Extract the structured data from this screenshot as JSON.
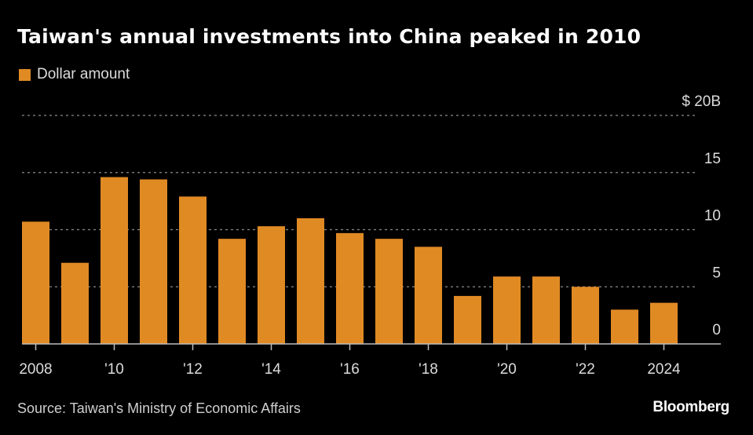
{
  "chart_data": {
    "type": "bar",
    "title": "Taiwan's annual investments into China peaked in 2010",
    "legend": [
      {
        "name": "Dollar amount",
        "color": "#e08a24"
      }
    ],
    "legend_position": "top-left",
    "xlabel": "",
    "ylabel": "",
    "ylim": [
      0,
      20
    ],
    "y_unit_label": "$ 20B",
    "yticks": [
      0,
      5,
      10,
      15,
      20
    ],
    "ytick_labels": [
      "0",
      "5",
      "10",
      "15",
      "$ 20B"
    ],
    "grid": true,
    "categories": [
      "2008",
      "2009",
      "2010",
      "2011",
      "2012",
      "2013",
      "2014",
      "2015",
      "2016",
      "2017",
      "2018",
      "2019",
      "2020",
      "2021",
      "2022",
      "2023",
      "2024"
    ],
    "xtick_labels": [
      {
        "category": "2008",
        "label": "2008"
      },
      {
        "category": "2010",
        "label": "'10"
      },
      {
        "category": "2012",
        "label": "'12"
      },
      {
        "category": "2014",
        "label": "'14"
      },
      {
        "category": "2016",
        "label": "'16"
      },
      {
        "category": "2018",
        "label": "'18"
      },
      {
        "category": "2020",
        "label": "'20"
      },
      {
        "category": "2022",
        "label": "'22"
      },
      {
        "category": "2024",
        "label": "2024"
      }
    ],
    "series": [
      {
        "name": "Dollar amount",
        "color": "#e08a24",
        "values": [
          10.7,
          7.1,
          14.6,
          14.4,
          12.9,
          9.2,
          10.3,
          11.0,
          9.7,
          9.2,
          8.5,
          4.2,
          5.9,
          5.9,
          5.0,
          3.0,
          3.6
        ]
      }
    ]
  },
  "source": "Source: Taiwan's Ministry of Economic Affairs",
  "brand": "Bloomberg"
}
